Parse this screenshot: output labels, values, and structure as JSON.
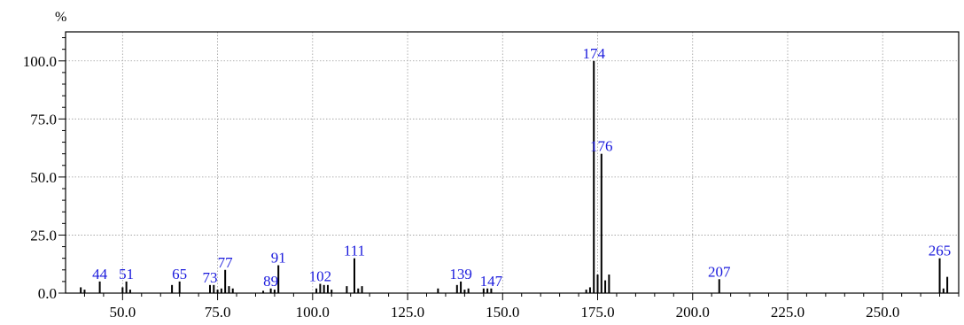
{
  "chart_data": {
    "type": "bar",
    "title": "",
    "xlabel": "",
    "ylabel": "%",
    "xlim": [
      35.0,
      270.0
    ],
    "ylim": [
      0.0,
      112.5
    ],
    "grid": true,
    "xticks": [
      50.0,
      75.0,
      100.0,
      125.0,
      150.0,
      175.0,
      200.0,
      225.0,
      250.0
    ],
    "xtick_labels": [
      "50.0",
      "75.0",
      "100.0",
      "125.0",
      "150.0",
      "175.0",
      "200.0",
      "225.0",
      "250.0"
    ],
    "yticks": [
      0.0,
      25.0,
      50.0,
      75.0,
      100.0
    ],
    "ytick_labels": [
      "0.0",
      "25.0",
      "50.0",
      "75.0",
      "100.0"
    ],
    "colors": {
      "bar": "#000000",
      "label": "#1a1adc",
      "grid": "#9a9a9a"
    },
    "peaks": [
      {
        "x": 39,
        "y": 2.5
      },
      {
        "x": 40,
        "y": 1.5
      },
      {
        "x": 44,
        "y": 5.0
      },
      {
        "x": 50,
        "y": 2.5
      },
      {
        "x": 51,
        "y": 5.0
      },
      {
        "x": 52,
        "y": 1.5
      },
      {
        "x": 63,
        "y": 3.5
      },
      {
        "x": 65,
        "y": 5.0
      },
      {
        "x": 73,
        "y": 3.5
      },
      {
        "x": 74,
        "y": 3.5
      },
      {
        "x": 75,
        "y": 1.5
      },
      {
        "x": 76,
        "y": 2.0
      },
      {
        "x": 77,
        "y": 10.0
      },
      {
        "x": 78,
        "y": 3.0
      },
      {
        "x": 79,
        "y": 2.0
      },
      {
        "x": 87,
        "y": 1.0
      },
      {
        "x": 89,
        "y": 2.0
      },
      {
        "x": 90,
        "y": 1.5
      },
      {
        "x": 91,
        "y": 12.0
      },
      {
        "x": 101,
        "y": 2.0
      },
      {
        "x": 102,
        "y": 4.0
      },
      {
        "x": 103,
        "y": 3.5
      },
      {
        "x": 104,
        "y": 3.5
      },
      {
        "x": 105,
        "y": 1.5
      },
      {
        "x": 109,
        "y": 3.0
      },
      {
        "x": 111,
        "y": 15.0
      },
      {
        "x": 112,
        "y": 2.0
      },
      {
        "x": 113,
        "y": 3.0
      },
      {
        "x": 133,
        "y": 2.0
      },
      {
        "x": 138,
        "y": 3.5
      },
      {
        "x": 139,
        "y": 5.0
      },
      {
        "x": 140,
        "y": 1.5
      },
      {
        "x": 141,
        "y": 2.0
      },
      {
        "x": 145,
        "y": 2.0
      },
      {
        "x": 146,
        "y": 2.0
      },
      {
        "x": 147,
        "y": 2.0
      },
      {
        "x": 172,
        "y": 1.5
      },
      {
        "x": 173,
        "y": 2.5
      },
      {
        "x": 174,
        "y": 100.0
      },
      {
        "x": 175,
        "y": 8.0
      },
      {
        "x": 176,
        "y": 60.0
      },
      {
        "x": 177,
        "y": 5.5
      },
      {
        "x": 178,
        "y": 8.0
      },
      {
        "x": 207,
        "y": 6.0
      },
      {
        "x": 265,
        "y": 15.0
      },
      {
        "x": 266,
        "y": 2.0
      },
      {
        "x": 267,
        "y": 7.0
      }
    ],
    "peak_labels": [
      {
        "x": 44,
        "y": 5.0,
        "text": "44"
      },
      {
        "x": 51,
        "y": 5.0,
        "text": "51"
      },
      {
        "x": 65,
        "y": 5.0,
        "text": "65"
      },
      {
        "x": 73,
        "y": 3.5,
        "text": "73"
      },
      {
        "x": 77,
        "y": 10.0,
        "text": "77"
      },
      {
        "x": 89,
        "y": 2.0,
        "text": "89"
      },
      {
        "x": 91,
        "y": 12.0,
        "text": "91"
      },
      {
        "x": 102,
        "y": 4.0,
        "text": "102"
      },
      {
        "x": 111,
        "y": 15.0,
        "text": "111"
      },
      {
        "x": 139,
        "y": 5.0,
        "text": "139"
      },
      {
        "x": 147,
        "y": 2.0,
        "text": "147"
      },
      {
        "x": 174,
        "y": 100.0,
        "text": "174"
      },
      {
        "x": 176,
        "y": 60.0,
        "text": "176"
      },
      {
        "x": 207,
        "y": 6.0,
        "text": "207"
      },
      {
        "x": 265,
        "y": 15.0,
        "text": "265"
      }
    ]
  }
}
